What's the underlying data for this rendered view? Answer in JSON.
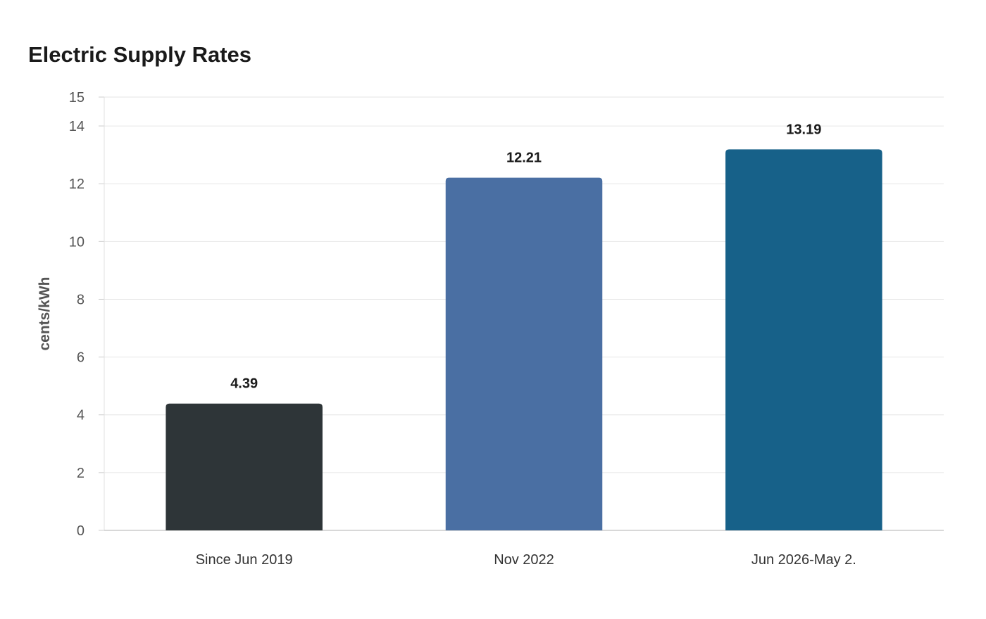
{
  "chart_data": {
    "type": "bar",
    "title": "Electric Supply Rates",
    "xlabel": "",
    "ylabel": "cents/kWh",
    "categories": [
      "Since Jun 2019",
      "Nov 2022",
      "Jun 2026-May 2."
    ],
    "values": [
      4.39,
      12.21,
      13.19
    ],
    "data_labels": [
      "4.39",
      "12.21",
      "13.19"
    ],
    "colors": [
      "#2e3538",
      "#4a6fa3",
      "#176189"
    ],
    "ylim": [
      0,
      15
    ],
    "yticks": [
      0,
      2,
      4,
      6,
      8,
      10,
      12,
      14,
      15
    ],
    "grid": true,
    "legend": "none"
  }
}
